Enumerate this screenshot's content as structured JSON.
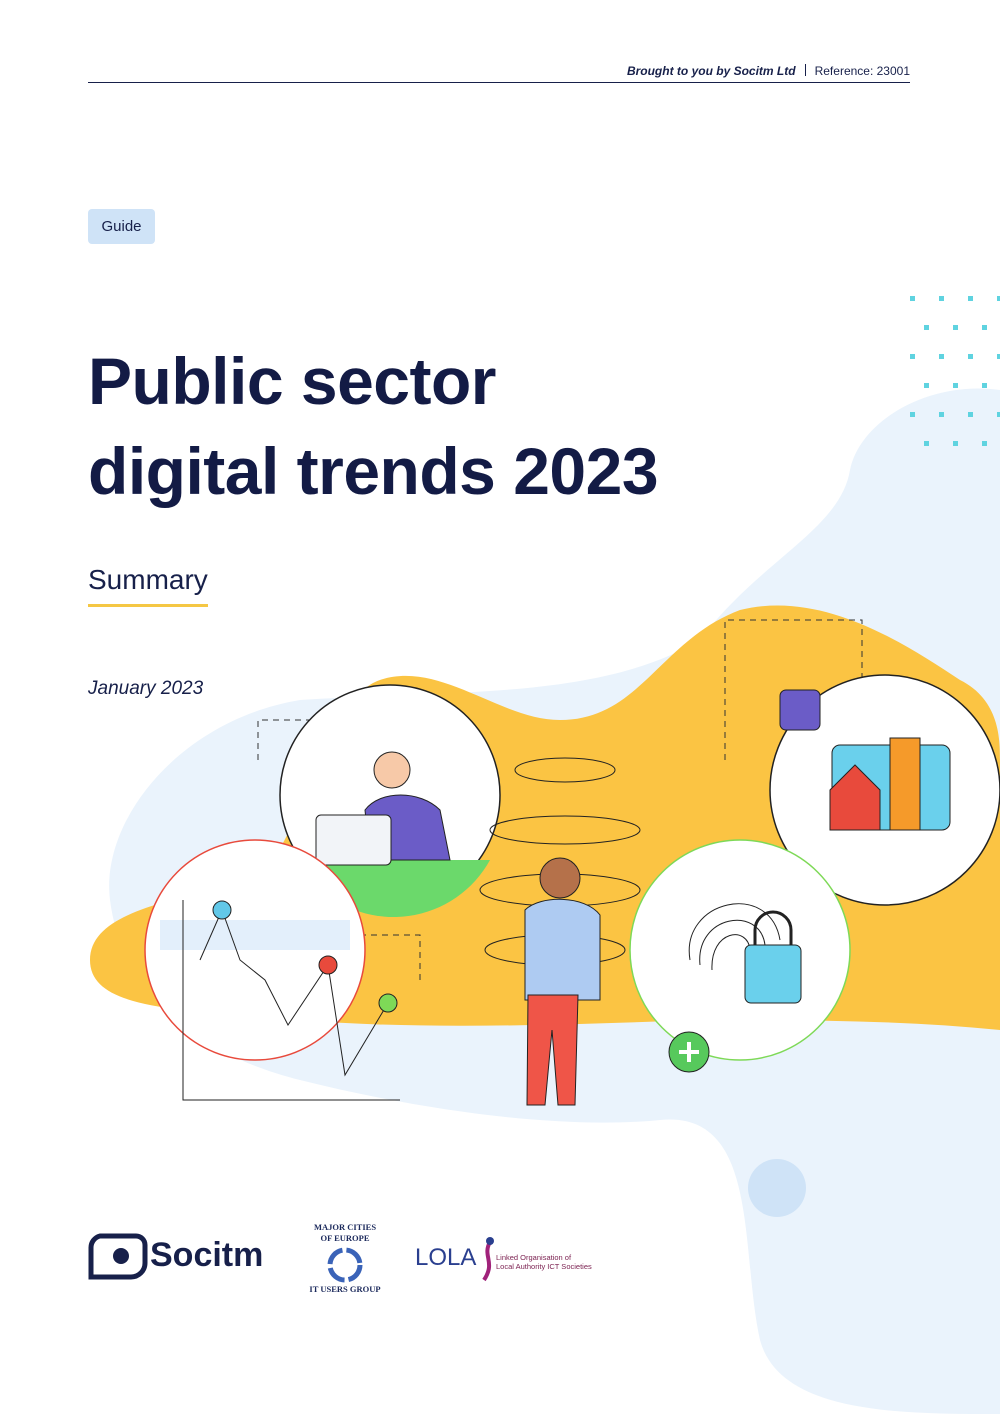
{
  "header": {
    "credit": "Brought to you by Socitm Ltd",
    "reference": "Reference: 23001"
  },
  "badge": "Guide",
  "title": [
    "Public sector",
    "digital trends 2023"
  ],
  "subtitle": "Summary",
  "date": "January 2023",
  "logos": {
    "socitm": "Socitm",
    "mcoe_top": [
      "MAJOR CITIES",
      "OF EUROPE"
    ],
    "mcoe_bottom": "IT USERS GROUP",
    "lola": "LOLA",
    "lola_text": [
      "Linked Organisation of",
      "Local Authority ICT Societies"
    ]
  }
}
